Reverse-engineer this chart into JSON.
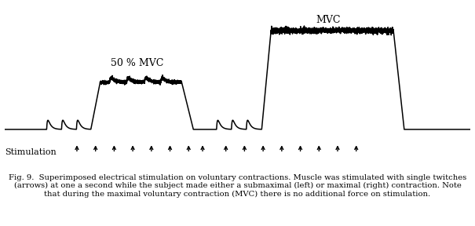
{
  "title_left": "50 % MVC",
  "title_right": "MVC",
  "stimulation_label": "Stimulation",
  "caption_line1": "Fig. 9.  Superimposed electrical stimulation on voluntary contractions. Muscle was stimulated with single twitches",
  "caption_line2": "(arrows) at one a second while the subject made either a submaximal (left) or maximal (right) contraction. Note",
  "caption_line3": "that during the maximal voluntary contraction (MVC) there is no additional force on stimulation.",
  "bg_color": "#ffffff",
  "line_color": "#000000",
  "arrow_color": "#000000",
  "left_arrows": [
    1.55,
    1.95,
    2.35,
    2.75,
    3.15,
    3.55,
    3.95,
    4.25
  ],
  "right_arrows": [
    4.75,
    5.15,
    5.55,
    5.95,
    6.35,
    6.75,
    7.15,
    7.55
  ]
}
